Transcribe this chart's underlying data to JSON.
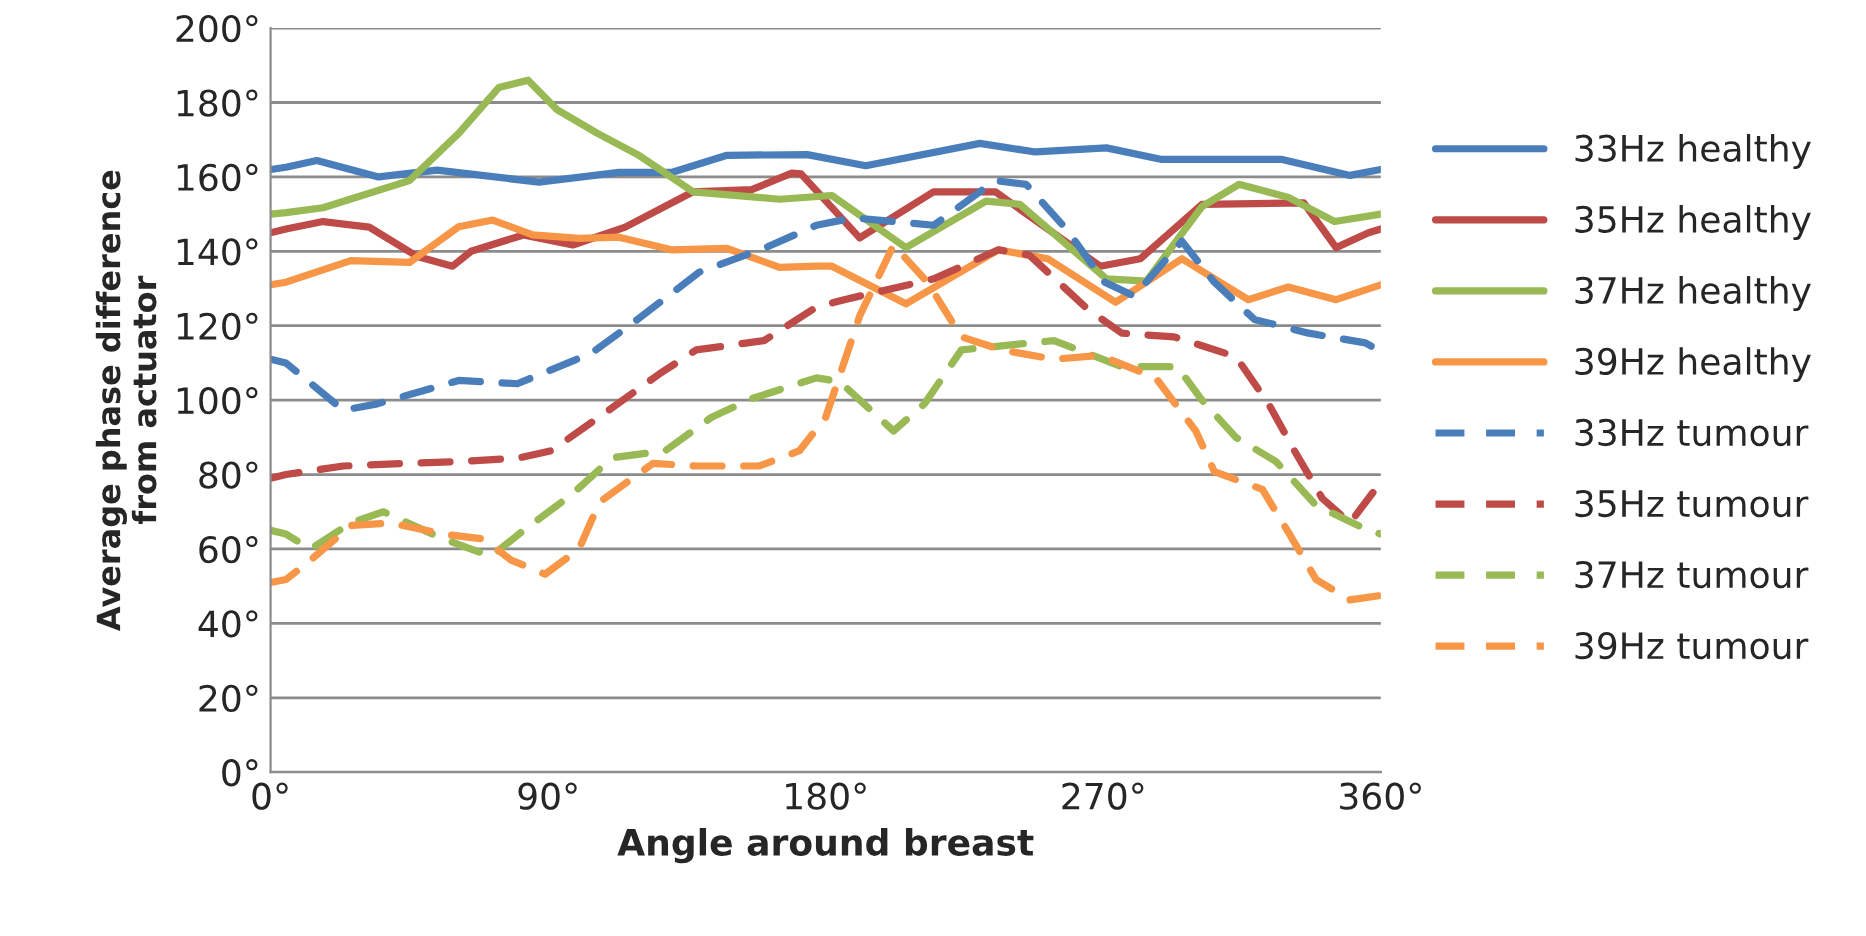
{
  "chart_data": {
    "type": "line",
    "xlabel": "Angle around breast",
    "ylabel": "Average phase difference\nfrom actuator",
    "xlim": [
      0,
      360
    ],
    "ylim": [
      0,
      200
    ],
    "xticks": [
      {
        "value": 0,
        "label": "0°"
      },
      {
        "value": 90,
        "label": "90°"
      },
      {
        "value": 180,
        "label": "180°"
      },
      {
        "value": 270,
        "label": "270°"
      },
      {
        "value": 360,
        "label": "360°"
      }
    ],
    "yticks": [
      {
        "value": 0,
        "label": "0°"
      },
      {
        "value": 20,
        "label": "20°"
      },
      {
        "value": 40,
        "label": "40°"
      },
      {
        "value": 60,
        "label": "60°"
      },
      {
        "value": 80,
        "label": "80°"
      },
      {
        "value": 100,
        "label": "100°"
      },
      {
        "value": 120,
        "label": "120°"
      },
      {
        "value": 140,
        "label": "140°"
      },
      {
        "value": 160,
        "label": "160°"
      },
      {
        "value": 180,
        "label": "180°"
      },
      {
        "value": 200,
        "label": "200°"
      }
    ],
    "grid": "y",
    "legend": "right",
    "marker": "none",
    "series": [
      {
        "name": "33Hz healthy",
        "color": "#4a7ebb",
        "line_style": "solid",
        "x": [
          0,
          5,
          15,
          35,
          54,
          87,
          113,
          130,
          148,
          174,
          193,
          230,
          248,
          271,
          289,
          328,
          350,
          360
        ],
        "values": [
          162,
          162.6,
          164.4,
          160,
          161.8,
          158.6,
          161.2,
          161.2,
          165.8,
          166,
          163,
          169,
          166.7,
          167.8,
          164.7,
          164.7,
          160.4,
          162
        ]
      },
      {
        "name": "35Hz healthy",
        "color": "#be4b48",
        "line_style": "solid",
        "x": [
          0,
          5,
          17,
          32,
          47.6,
          59,
          65,
          82,
          98,
          115,
          137,
          156,
          169,
          172,
          191,
          215,
          235,
          269,
          282,
          302,
          335,
          345.5,
          356,
          360
        ],
        "values": [
          145,
          146,
          148,
          146.5,
          138.6,
          136,
          140,
          144.4,
          141.7,
          146.5,
          156,
          156.6,
          161,
          160.8,
          143.6,
          156,
          156,
          136,
          138,
          152.6,
          153,
          141,
          145,
          146
        ]
      },
      {
        "name": "37Hz healthy",
        "color": "#98b954",
        "line_style": "solid",
        "x": [
          0,
          5,
          17,
          45,
          61,
          74,
          83.5,
          93,
          106,
          119,
          137,
          165,
          182,
          206,
          232,
          243,
          271,
          284,
          302,
          314,
          330,
          345,
          360
        ],
        "values": [
          150,
          150.4,
          151.7,
          159,
          171.7,
          184,
          186,
          178,
          171.7,
          166,
          156,
          154,
          155,
          141,
          153.5,
          152.6,
          132.6,
          132,
          152,
          158,
          154.5,
          148,
          150
        ]
      },
      {
        "name": "39Hz healthy",
        "color": "#f79646",
        "line_style": "solid",
        "x": [
          0,
          5,
          26,
          45,
          61,
          72,
          85,
          100,
          113,
          130,
          148,
          165,
          177,
          182,
          206,
          236,
          252,
          274,
          295.5,
          317,
          330,
          345.5,
          360
        ],
        "values": [
          131,
          131.7,
          137.5,
          137,
          146.6,
          148.4,
          144.4,
          143.5,
          143.8,
          140.4,
          140.8,
          135.7,
          136,
          136,
          125.9,
          140.4,
          138,
          126.3,
          138,
          127,
          130.4,
          127,
          131
        ]
      },
      {
        "name": "33Hz tumour",
        "color": "#4a7ebb",
        "line_style": "dashed",
        "x": [
          0,
          5,
          23.6,
          34.6,
          61,
          80,
          104,
          119,
          139,
          160,
          177,
          189,
          215,
          235,
          245,
          258,
          270.5,
          280,
          295.5,
          306,
          319,
          336.6,
          355,
          360
        ],
        "values": [
          111,
          110,
          97.3,
          99,
          105.3,
          104.4,
          112.6,
          121.7,
          134.4,
          140.8,
          147,
          149,
          147,
          159,
          158,
          146,
          131.7,
          128,
          142.7,
          131.7,
          121.7,
          118,
          115.4,
          113
        ]
      },
      {
        "name": "35Hz tumour",
        "color": "#be4b48",
        "line_style": "dashed",
        "x": [
          0,
          5,
          23.6,
          43,
          61,
          80,
          91,
          108,
          126,
          138,
          160,
          177,
          186,
          215,
          236,
          246,
          265,
          276,
          293,
          313,
          323.6,
          332,
          341,
          350,
          360
        ],
        "values": [
          79,
          80,
          82.3,
          83,
          83.5,
          84.4,
          86.4,
          96.3,
          107,
          113.5,
          116,
          125,
          127,
          132.6,
          140.4,
          139,
          124.4,
          118,
          117,
          111.7,
          99,
          86.4,
          73.6,
          67,
          78
        ]
      },
      {
        "name": "37Hz tumour",
        "color": "#98b954",
        "line_style": "dashed",
        "x": [
          0,
          5,
          13,
          26,
          36.6,
          56,
          71.5,
          82,
          97.5,
          110.7,
          128,
          143,
          156,
          177,
          184.5,
          202,
          212,
          224,
          254,
          276,
          294,
          302,
          313,
          326,
          339,
          356,
          360
        ],
        "values": [
          65,
          64,
          60,
          67,
          70,
          62.7,
          58,
          65,
          74.5,
          84.5,
          86.4,
          95.4,
          100.4,
          106,
          105,
          91.7,
          99,
          113.5,
          116,
          109,
          109,
          100,
          90,
          83.5,
          71.7,
          65,
          64
        ]
      },
      {
        "name": "39Hz tumour",
        "color": "#f79646",
        "line_style": "dashed",
        "x": [
          0,
          5,
          13,
          26,
          39,
          56,
          69,
          78,
          89,
          100,
          106.7,
          124,
          138,
          158.5,
          171.5,
          180,
          191,
          202,
          213,
          224,
          237,
          254,
          269,
          287,
          300,
          306,
          321.6,
          330,
          339,
          350,
          360
        ],
        "values": [
          51,
          51.8,
          57,
          66.3,
          67,
          64,
          62.7,
          57,
          53.2,
          60,
          72.6,
          83,
          82.3,
          82.3,
          86.4,
          95.4,
          122.6,
          141.7,
          131.7,
          117,
          113.5,
          111,
          112,
          106,
          91.7,
          80.8,
          76,
          64.5,
          51.8,
          46.3,
          47.5
        ]
      }
    ]
  }
}
